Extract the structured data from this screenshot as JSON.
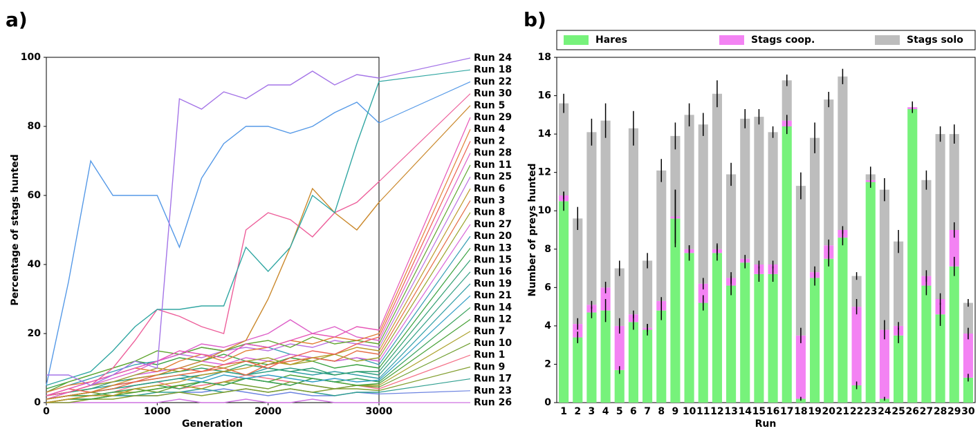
{
  "chart_data": [
    {
      "type": "line",
      "panel_label": "a)",
      "x_label": "Generation",
      "y_label": "Percentage of stags hunted",
      "x": [
        0,
        200,
        400,
        600,
        800,
        1000,
        1200,
        1400,
        1600,
        1800,
        2000,
        2200,
        2400,
        2600,
        2800,
        3000
      ],
      "xlim": [
        0,
        3000
      ],
      "xticks": [
        0,
        1000,
        2000,
        3000
      ],
      "ylim": [
        0,
        100
      ],
      "yticks": [
        0,
        20,
        40,
        60,
        80,
        100
      ],
      "series": [
        {
          "name": "Run 24",
          "color": "hsl(265,70%,68%)",
          "values": [
            8,
            8,
            5,
            8,
            12,
            10,
            88,
            85,
            90,
            88,
            92,
            92,
            96,
            92,
            95,
            94
          ]
        },
        {
          "name": "Run 18",
          "color": "hsl(178,55%,42%)",
          "values": [
            5,
            7,
            9,
            15,
            22,
            27,
            27,
            28,
            28,
            45,
            38,
            45,
            60,
            55,
            75,
            93
          ]
        },
        {
          "name": "Run 22",
          "color": "hsl(212,75%,62%)",
          "values": [
            5,
            35,
            70,
            60,
            60,
            60,
            45,
            65,
            75,
            80,
            80,
            78,
            80,
            84,
            87,
            81
          ]
        },
        {
          "name": "Run 30",
          "color": "hsl(335,80%,65%)",
          "values": [
            2,
            3,
            5,
            10,
            18,
            27,
            25,
            22,
            20,
            50,
            55,
            53,
            48,
            55,
            58,
            64
          ]
        },
        {
          "name": "Run 5",
          "color": "hsl(35,65%,48%)",
          "values": [
            1,
            2,
            3,
            5,
            7,
            8,
            10,
            12,
            15,
            18,
            30,
            45,
            62,
            55,
            50,
            58
          ]
        },
        {
          "name": "Run 29",
          "color": "hsl(320,75%,62%)",
          "values": [
            2,
            4,
            6,
            8,
            10,
            12,
            15,
            14,
            13,
            17,
            16,
            18,
            20,
            19,
            22,
            21
          ]
        },
        {
          "name": "Run 4",
          "color": "hsl(25,75%,55%)",
          "values": [
            3,
            5,
            6,
            8,
            10,
            9,
            12,
            14,
            12,
            15,
            16,
            18,
            17,
            19,
            18,
            20
          ]
        },
        {
          "name": "Run 2",
          "color": "hsl(5,80%,62%)",
          "values": [
            2,
            4,
            3,
            5,
            6,
            8,
            10,
            9,
            11,
            12,
            10,
            13,
            15,
            14,
            17,
            19
          ]
        },
        {
          "name": "Run 28",
          "color": "hsl(310,65%,62%)",
          "values": [
            1,
            3,
            5,
            7,
            9,
            12,
            14,
            17,
            16,
            18,
            20,
            24,
            20,
            22,
            19,
            18
          ]
        },
        {
          "name": "Run 11",
          "color": "hsl(95,55%,42%)",
          "values": [
            3,
            6,
            8,
            10,
            12,
            15,
            14,
            16,
            15,
            17,
            18,
            16,
            19,
            17,
            18,
            17
          ]
        },
        {
          "name": "Run 25",
          "color": "hsl(280,65%,66%)",
          "values": [
            2,
            4,
            6,
            8,
            10,
            12,
            14,
            13,
            15,
            16,
            15,
            17,
            16,
            18,
            17,
            16
          ]
        },
        {
          "name": "Run 6",
          "color": "hsl(45,65%,45%)",
          "values": [
            0,
            1,
            2,
            2,
            4,
            5,
            6,
            8,
            9,
            10,
            12,
            11,
            13,
            14,
            16,
            15
          ]
        },
        {
          "name": "Run 3",
          "color": "hsl(15,75%,58%)",
          "values": [
            1,
            2,
            3,
            4,
            6,
            7,
            8,
            9,
            10,
            8,
            11,
            12,
            13,
            12,
            15,
            14
          ]
        },
        {
          "name": "Run 8",
          "color": "hsl(65,60%,40%)",
          "values": [
            2,
            3,
            5,
            6,
            8,
            10,
            9,
            11,
            10,
            12,
            13,
            11,
            12,
            14,
            12,
            13
          ]
        },
        {
          "name": "Run 27",
          "color": "hsl(300,60%,62%)",
          "values": [
            1,
            3,
            5,
            6,
            8,
            9,
            10,
            12,
            11,
            13,
            12,
            14,
            13,
            12,
            13,
            12
          ]
        },
        {
          "name": "Run 20",
          "color": "hsl(190,55%,45%)",
          "values": [
            3,
            5,
            7,
            9,
            11,
            12,
            14,
            16,
            15,
            17,
            16,
            14,
            13,
            12,
            13,
            11
          ]
        },
        {
          "name": "Run 13",
          "color": "hsl(125,50%,42%)",
          "values": [
            4,
            6,
            8,
            10,
            12,
            11,
            13,
            12,
            14,
            12,
            11,
            13,
            12,
            10,
            11,
            10
          ]
        },
        {
          "name": "Run 15",
          "color": "hsl(155,55%,40%)",
          "values": [
            2,
            3,
            4,
            6,
            7,
            8,
            9,
            10,
            9,
            11,
            10,
            9,
            10,
            8,
            9,
            9
          ]
        },
        {
          "name": "Run 16",
          "color": "hsl(165,55%,40%)",
          "values": [
            1,
            2,
            3,
            4,
            5,
            6,
            7,
            8,
            9,
            8,
            9,
            10,
            9,
            8,
            9,
            8
          ]
        },
        {
          "name": "Run 19",
          "color": "hsl(184,55%,42%)",
          "values": [
            2,
            3,
            4,
            5,
            6,
            7,
            8,
            7,
            9,
            8,
            10,
            9,
            8,
            9,
            8,
            7
          ]
        },
        {
          "name": "Run 21",
          "color": "hsl(196,60%,48%)",
          "values": [
            1,
            2,
            3,
            4,
            5,
            6,
            7,
            6,
            8,
            7,
            8,
            7,
            6,
            7,
            6,
            6.5
          ]
        },
        {
          "name": "Run 14",
          "color": "hsl(140,50%,42%)",
          "values": [
            1,
            2,
            2,
            3,
            4,
            5,
            4,
            6,
            5,
            7,
            6,
            5,
            7,
            6,
            7,
            6
          ]
        },
        {
          "name": "Run 12",
          "color": "hsl(110,50%,42%)",
          "values": [
            0,
            1,
            1,
            2,
            3,
            4,
            5,
            6,
            5,
            7,
            6,
            8,
            7,
            6,
            5,
            5.5
          ]
        },
        {
          "name": "Run 7",
          "color": "hsl(55,60%,42%)",
          "values": [
            1,
            2,
            2,
            3,
            3,
            4,
            5,
            4,
            6,
            7,
            6,
            5,
            7,
            6,
            5,
            5
          ]
        },
        {
          "name": "Run 10",
          "color": "hsl(85,55%,40%)",
          "values": [
            1,
            2,
            3,
            2,
            4,
            3,
            5,
            4,
            6,
            5,
            4,
            6,
            5,
            4,
            5,
            4.5
          ]
        },
        {
          "name": "Run 1",
          "color": "hsl(350,85%,70%)",
          "values": [
            0,
            1,
            2,
            3,
            5,
            6,
            4,
            5,
            6,
            8,
            7,
            6,
            5,
            4,
            5,
            4
          ]
        },
        {
          "name": "Run 9",
          "color": "hsl(75,55%,40%)",
          "values": [
            0,
            0,
            1,
            1,
            2,
            2,
            3,
            2,
            3,
            4,
            3,
            4,
            3,
            4,
            4,
            3.5
          ]
        },
        {
          "name": "Run 17",
          "color": "hsl(172,55%,40%)",
          "values": [
            0,
            1,
            1,
            2,
            2,
            3,
            3,
            4,
            3,
            4,
            3,
            4,
            3,
            2,
            3,
            3
          ]
        },
        {
          "name": "Run 23",
          "color": "hsl(228,65%,65%)",
          "values": [
            0,
            1,
            1,
            2,
            2,
            2,
            3,
            3,
            4,
            3,
            2,
            3,
            2,
            2,
            3,
            2.5
          ]
        },
        {
          "name": "Run 26",
          "color": "hsl(290,65%,66%)",
          "values": [
            0,
            0,
            0,
            0,
            0,
            0,
            1,
            0,
            0,
            1,
            0,
            0,
            1,
            0,
            0,
            0
          ]
        }
      ]
    },
    {
      "type": "stacked_bar",
      "panel_label": "b)",
      "x_label": "Run",
      "y_label": "Number of preys hunted",
      "categories": [
        "1",
        "2",
        "3",
        "4",
        "5",
        "6",
        "7",
        "8",
        "9",
        "10",
        "11",
        "12",
        "13",
        "14",
        "15",
        "16",
        "17",
        "18",
        "19",
        "20",
        "21",
        "22",
        "23",
        "24",
        "25",
        "26",
        "27",
        "28",
        "29",
        "30"
      ],
      "ylim": [
        0,
        18
      ],
      "yticks": [
        0,
        2,
        4,
        6,
        8,
        10,
        12,
        14,
        16,
        18
      ],
      "series": [
        {
          "name": "Hares",
          "color": "#77f27b",
          "values": [
            10.5,
            3.4,
            4.7,
            4.8,
            1.7,
            4.2,
            3.8,
            4.8,
            9.6,
            7.8,
            5.2,
            7.8,
            6.1,
            7.3,
            6.7,
            6.7,
            14.4,
            0.2,
            6.5,
            7.5,
            8.6,
            0.9,
            11.5,
            0.2,
            3.5,
            15.3,
            6.1,
            4.6,
            7.1,
            1.3
          ],
          "errors": [
            0.5,
            0.3,
            0.3,
            0.6,
            0.2,
            0.4,
            0.3,
            0.5,
            1.5,
            0.4,
            0.4,
            0.4,
            0.5,
            0.3,
            0.4,
            0.4,
            0.4,
            0.1,
            0.4,
            0.4,
            0.4,
            0.2,
            0.3,
            0.1,
            0.4,
            0.2,
            0.5,
            0.6,
            0.5,
            0.2
          ]
        },
        {
          "name": "Stags coop.",
          "color": "#f383f3",
          "values": [
            0.3,
            0.7,
            0.4,
            1.2,
            2.3,
            0.4,
            0.1,
            0.5,
            0.1,
            0.2,
            1.0,
            0.2,
            0.4,
            0.2,
            0.5,
            0.5,
            0.3,
            3.3,
            0.3,
            0.7,
            0.4,
            4.1,
            0.1,
            3.6,
            0.5,
            0.1,
            0.5,
            0.8,
            1.9,
            2.3
          ],
          "errors": [
            0.2,
            0.3,
            0.2,
            0.3,
            0.4,
            0.2,
            0.2,
            0.2,
            1.4,
            0.2,
            0.3,
            0.3,
            0.3,
            0.2,
            0.2,
            0.2,
            0.3,
            0.4,
            0.3,
            0.3,
            0.2,
            0.4,
            0.1,
            0.5,
            0.2,
            0.1,
            0.3,
            0.3,
            0.4,
            0.3
          ]
        },
        {
          "name": "Stags solo",
          "color": "#bdbdbd",
          "values": [
            4.8,
            5.5,
            9.0,
            8.7,
            3.0,
            9.7,
            3.5,
            6.8,
            4.2,
            7.0,
            8.3,
            8.1,
            5.4,
            7.3,
            7.7,
            6.9,
            2.1,
            7.8,
            7.0,
            7.6,
            8.0,
            1.6,
            0.3,
            7.3,
            4.4,
            0.0,
            5.0,
            8.6,
            5.0,
            1.6
          ],
          "errors": [
            0.5,
            0.6,
            0.7,
            0.9,
            0.4,
            0.9,
            0.4,
            0.6,
            0.7,
            0.6,
            0.6,
            0.7,
            0.6,
            0.5,
            0.4,
            0.3,
            0.3,
            0.7,
            0.8,
            0.4,
            0.4,
            0.2,
            0.4,
            0.6,
            0.6,
            0.3,
            0.5,
            0.4,
            0.5,
            0.2
          ]
        }
      ]
    }
  ]
}
